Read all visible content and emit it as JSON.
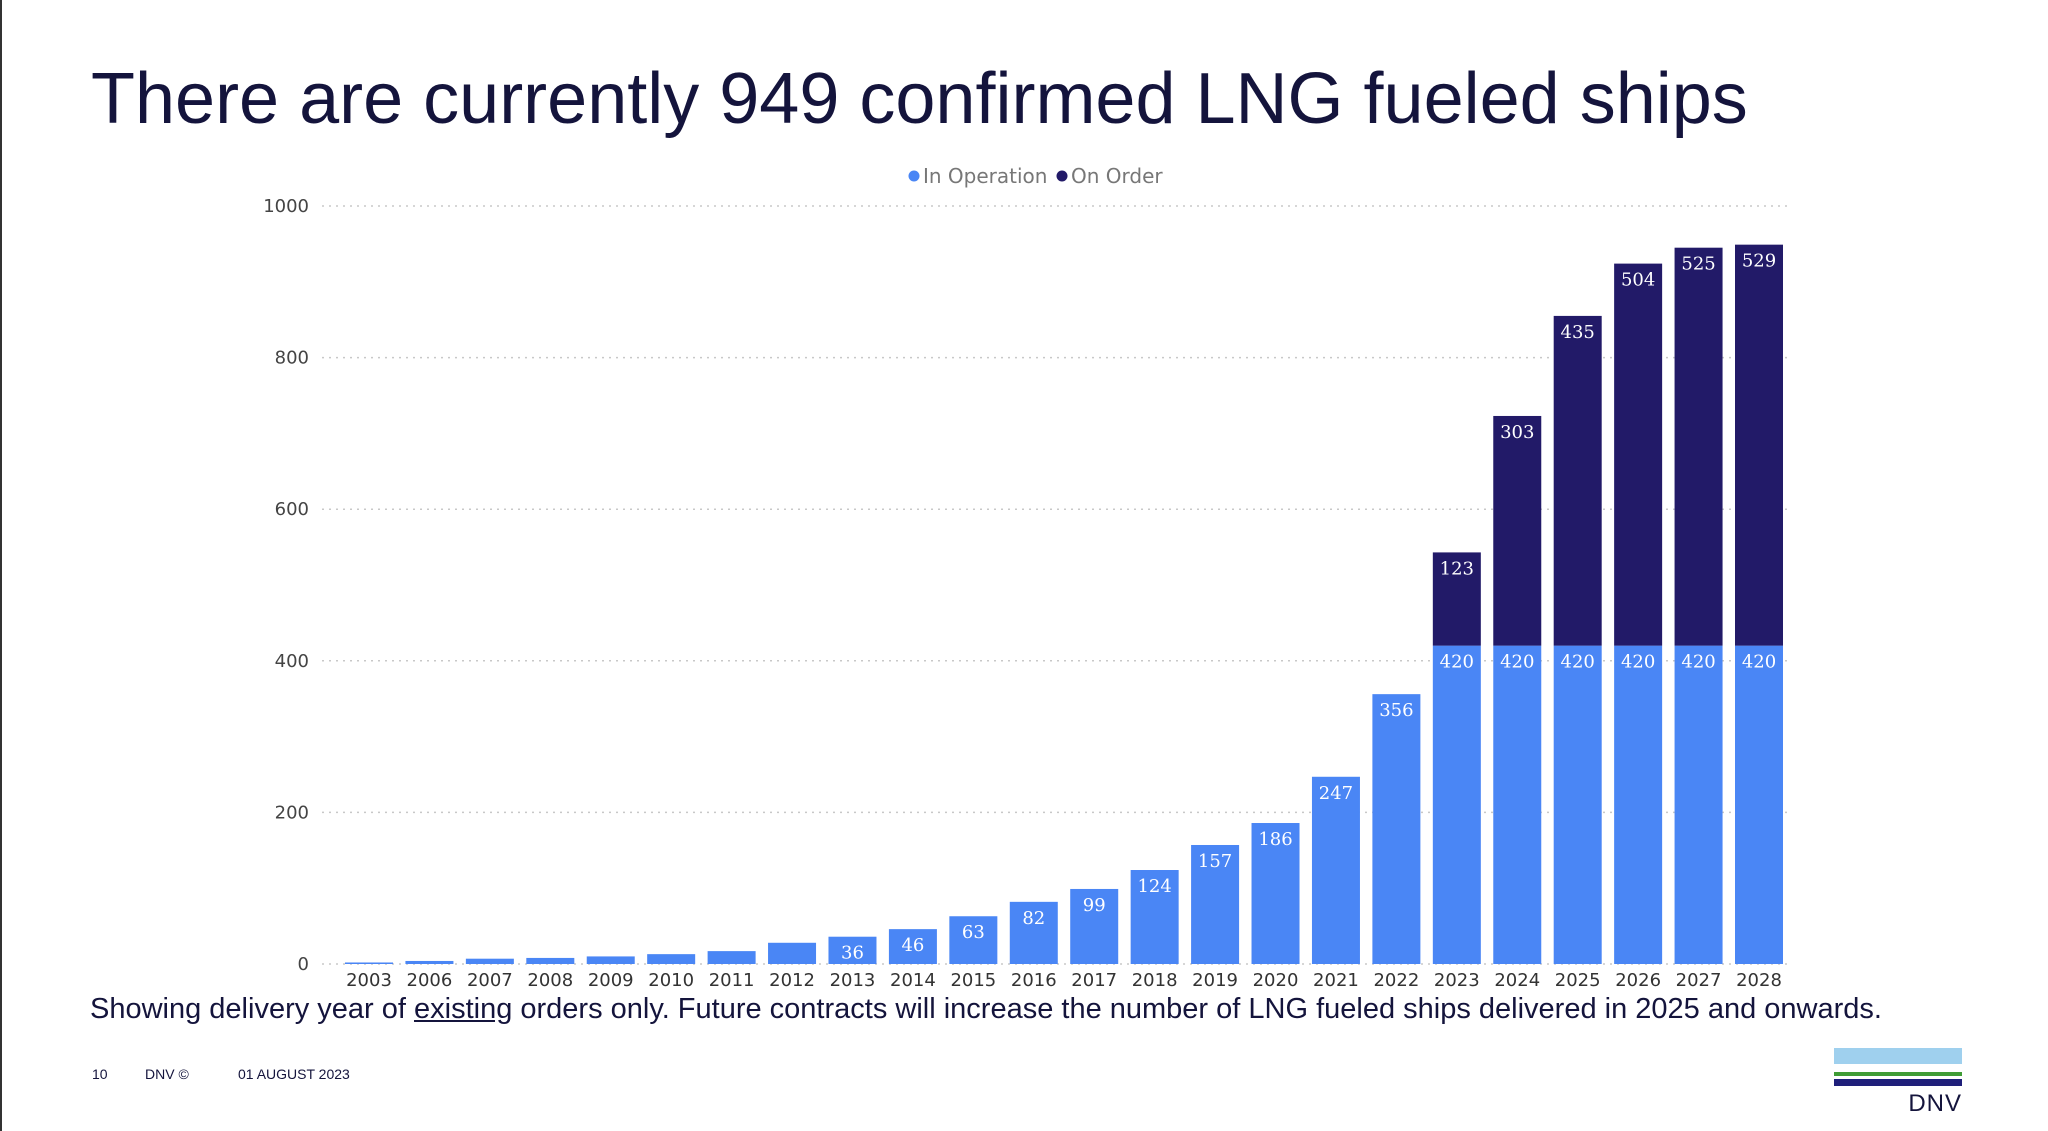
{
  "title": "There are currently 949 confirmed LNG fueled ships",
  "caption": {
    "pre": "Showing delivery year of ",
    "underlined": "existing",
    "post": " orders only. Future contracts will increase the number of LNG fueled ships delivered in 2025 and onwards."
  },
  "footer": {
    "page": "10",
    "copyright": "DNV ©",
    "date": "01 AUGUST 2023"
  },
  "logo": {
    "text": "DNV"
  },
  "chart_data": {
    "type": "bar",
    "stacked": true,
    "categories": [
      "2003",
      "2006",
      "2007",
      "2008",
      "2009",
      "2010",
      "2011",
      "2012",
      "2013",
      "2014",
      "2015",
      "2016",
      "2017",
      "2018",
      "2019",
      "2020",
      "2021",
      "2022",
      "2023",
      "2024",
      "2025",
      "2026",
      "2027",
      "2028"
    ],
    "series": [
      {
        "name": "In Operation",
        "color": "#4a86f5",
        "values": [
          2,
          4,
          7,
          8,
          10,
          13,
          17,
          28,
          36,
          46,
          63,
          82,
          99,
          124,
          157,
          186,
          247,
          356,
          420,
          420,
          420,
          420,
          420,
          420
        ],
        "labels_from_index": 8
      },
      {
        "name": "On Order",
        "color": "#221a68",
        "values": [
          0,
          0,
          0,
          0,
          0,
          0,
          0,
          0,
          0,
          0,
          0,
          0,
          0,
          0,
          0,
          0,
          0,
          0,
          123,
          303,
          435,
          504,
          525,
          529
        ],
        "labels_from_index": 18
      }
    ],
    "ylim": [
      0,
      1000
    ],
    "yticks": [
      0,
      200,
      400,
      600,
      800,
      1000
    ],
    "grid": true,
    "legend": "top-center"
  }
}
